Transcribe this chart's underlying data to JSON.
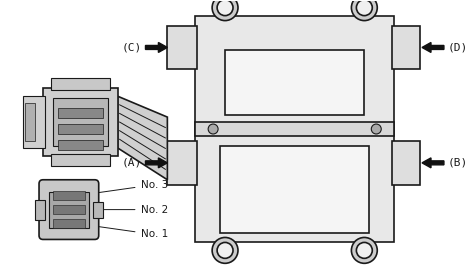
{
  "bg_color": "#ffffff",
  "line_color": "#1a1a1a",
  "figsize": [
    4.74,
    2.67
  ],
  "dpi": 100,
  "labels": {
    "A": "(A)",
    "B": "(B)",
    "C": "(C)",
    "D": "(D)",
    "No1": "No. 1",
    "No2": "No. 2",
    "No3": "No. 3"
  }
}
